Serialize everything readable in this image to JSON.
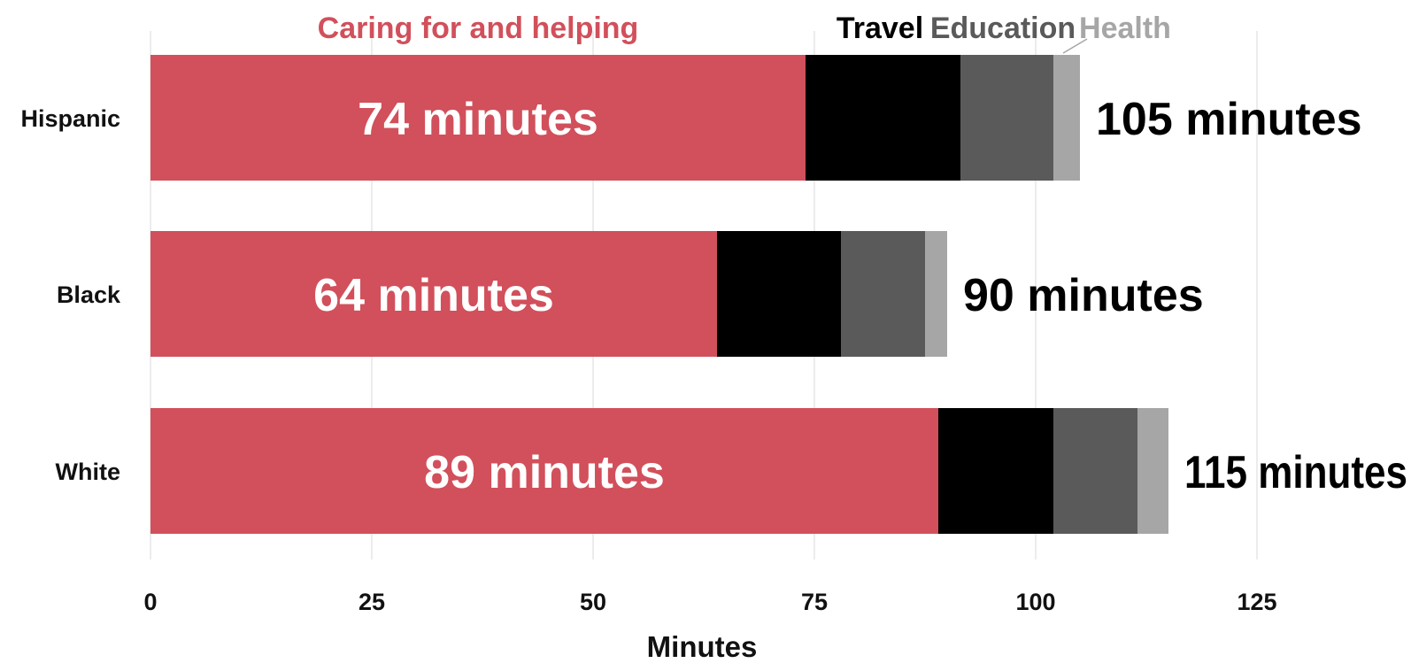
{
  "chart_data": {
    "type": "bar",
    "orientation": "horizontal",
    "stacked": true,
    "xlabel": "Minutes",
    "xlim": [
      0,
      135
    ],
    "xticks": [
      0,
      25,
      50,
      75,
      100,
      125
    ],
    "grid": true,
    "legend_position": "top",
    "categories": [
      "Hispanic",
      "Black",
      "White"
    ],
    "series": [
      {
        "name": "Caring for and helping",
        "color": "#d1505b",
        "values": [
          74,
          64,
          89
        ]
      },
      {
        "name": "Travel",
        "color": "#000000",
        "values": [
          17.5,
          14,
          13
        ]
      },
      {
        "name": "Education",
        "color": "#5a5a5a",
        "values": [
          10.5,
          9.5,
          9.5
        ]
      },
      {
        "name": "Health",
        "color": "#a6a6a6",
        "values": [
          3,
          2.5,
          3.5
        ]
      }
    ],
    "inbar_labels": [
      "74 minutes",
      "64 minutes",
      "89 minutes"
    ],
    "totals": [
      105,
      90,
      115
    ],
    "total_labels": [
      "105 minutes",
      "90 minutes",
      "115 minutes"
    ]
  }
}
